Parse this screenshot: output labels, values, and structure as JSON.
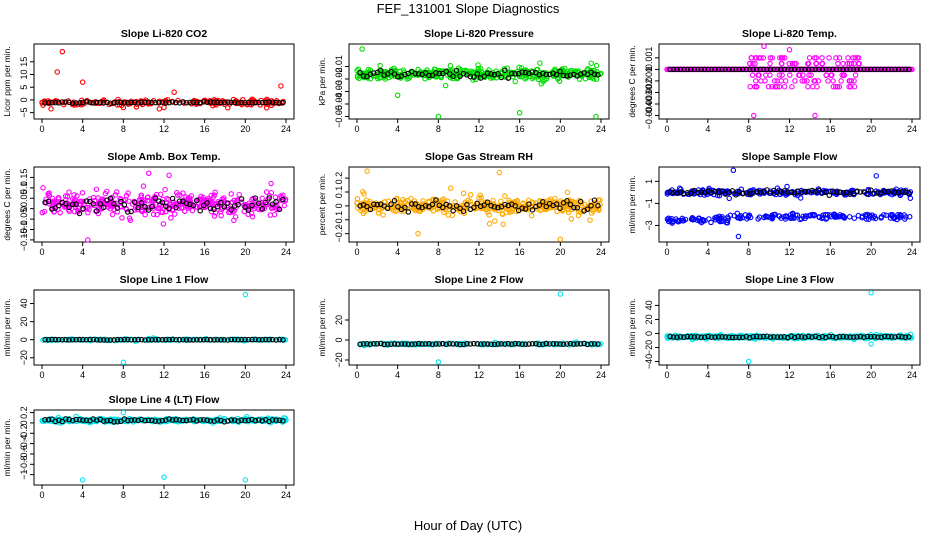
{
  "title": "FEF_131001  Slope Diagnostics",
  "xlabel": "Hour of Day (UTC)",
  "colors": {
    "obs": "#000000"
  },
  "chart_data": [
    {
      "type": "scatter",
      "title": "Slope Li-820 CO2",
      "ylabel": "Licor ppm per min.",
      "color": "#ff0000",
      "xlim": [
        0,
        24
      ],
      "ylim": [
        -7.5,
        22
      ],
      "yticks": [
        -5,
        0,
        5,
        10,
        15
      ],
      "xticks": [
        0,
        4,
        8,
        12,
        16,
        20,
        24
      ],
      "density": "sparse",
      "center": -1,
      "spread": 1.6,
      "obs_spread": 0.4,
      "outliers": [
        [
          2,
          19
        ],
        [
          1.5,
          11
        ],
        [
          4,
          7
        ],
        [
          8,
          -3
        ],
        [
          12,
          -3
        ],
        [
          13,
          3
        ],
        [
          23.5,
          5.5
        ]
      ]
    },
    {
      "type": "scatter",
      "title": "Slope Li-820 Pressure",
      "ylabel": "kPa per min.",
      "color": "#00dd00",
      "xlim": [
        0,
        24
      ],
      "ylim": [
        -0.052,
        0.008
      ],
      "yticks": [
        -0.05,
        -0.04,
        -0.03,
        -0.02,
        -0.01
      ],
      "xticks": [
        0,
        4,
        8,
        12,
        16,
        20,
        24
      ],
      "density": "dense",
      "center": -0.016,
      "spread": 0.006,
      "obs_spread": 0.004,
      "outliers": [
        [
          0.5,
          0.004
        ],
        [
          8,
          -0.05
        ],
        [
          16,
          -0.047
        ],
        [
          23.5,
          -0.05
        ],
        [
          4,
          -0.033
        ]
      ]
    },
    {
      "type": "scatter",
      "title": "Slope Li-820 Temp.",
      "ylabel": "degrees C per min.",
      "color": "#ff00ff",
      "xlim": [
        0,
        24
      ],
      "ylim": [
        -0.0043,
        0.0022
      ],
      "yticks": [
        -0.004,
        -0.003,
        -0.002,
        -0.001,
        0,
        0.001
      ],
      "xticks": [
        0,
        4,
        8,
        12,
        16,
        20,
        24
      ],
      "density": "band",
      "center": 0,
      "spread": 0,
      "obs_spread": 0,
      "outliers": [
        [
          9.5,
          0.002
        ],
        [
          12,
          0.0017
        ],
        [
          8.5,
          -0.004
        ],
        [
          14.5,
          -0.004
        ]
      ],
      "band_range": [
        8,
        19
      ],
      "band_values": [
        0.001,
        0.0005,
        -0.0005,
        -0.001,
        -0.0015
      ]
    },
    {
      "type": "scatter",
      "title": "Slope Amb. Box Temp.",
      "ylabel": "degrees C per min.",
      "color": "#ff00ff",
      "xlim": [
        0,
        24
      ],
      "ylim": [
        -0.16,
        0.2
      ],
      "yticks": [
        -0.15,
        -0.1,
        -0.05,
        0,
        0.05,
        0.1,
        0.15
      ],
      "xticks": [
        0,
        4,
        8,
        12,
        16,
        20,
        24
      ],
      "density": "dense",
      "center": 0.02,
      "spread": 0.07,
      "obs_spread": 0.05,
      "outliers": [
        [
          10.5,
          0.17
        ],
        [
          12.5,
          0.16
        ],
        [
          4.5,
          -0.15
        ]
      ]
    },
    {
      "type": "scatter",
      "title": "Slope Gas Stream RH",
      "ylabel": "percent per min.",
      "color": "#ffaa00",
      "xlim": [
        0,
        24
      ],
      "ylim": [
        -0.26,
        0.28
      ],
      "yticks": [
        -0.2,
        -0.1,
        0,
        0.1,
        0.2
      ],
      "xticks": [
        0,
        4,
        8,
        12,
        16,
        20,
        24
      ],
      "density": "dense",
      "center": 0,
      "spread": 0.08,
      "obs_spread": 0.06,
      "outliers": [
        [
          1,
          0.25
        ],
        [
          14,
          0.24
        ],
        [
          20,
          -0.24
        ],
        [
          6,
          -0.2
        ]
      ]
    },
    {
      "type": "scatter",
      "title": "Slope Sample Flow",
      "ylabel": "ml/min per min.",
      "color": "#0000ff",
      "xlim": [
        0,
        24
      ],
      "ylim": [
        -4.5,
        2.3
      ],
      "yticks": [
        -3,
        -1,
        1
      ],
      "xticks": [
        0,
        4,
        8,
        12,
        16,
        20,
        24
      ],
      "density": "two-band",
      "center": 0,
      "spread": 0.35,
      "obs_spread": 0.3,
      "outliers": [
        [
          6.5,
          2
        ],
        [
          7,
          -4
        ],
        [
          20.5,
          1.5
        ]
      ],
      "band2_center": -2.2
    },
    {
      "type": "scatter",
      "title": "Slope Line 1 Flow",
      "ylabel": "ml/min per min.",
      "color": "#00e5ee",
      "xlim": [
        0,
        24
      ],
      "ylim": [
        -28,
        55
      ],
      "yticks": [
        -20,
        0,
        20,
        40
      ],
      "xticks": [
        0,
        4,
        8,
        12,
        16,
        20,
        24
      ],
      "density": "sparse",
      "center": 0,
      "spread": 1.2,
      "obs_spread": 0.5,
      "outliers": [
        [
          20,
          50
        ],
        [
          8,
          -25
        ]
      ]
    },
    {
      "type": "scatter",
      "title": "Slope Line 2 Flow",
      "ylabel": "ml/min per min.",
      "color": "#00e5ee",
      "xlim": [
        0,
        24
      ],
      "ylim": [
        -25,
        50
      ],
      "yticks": [
        -20,
        0,
        20
      ],
      "xticks": [
        0,
        4,
        8,
        12,
        16,
        20,
        24
      ],
      "density": "sparse",
      "center": -4,
      "spread": 1.2,
      "obs_spread": 0.8,
      "outliers": [
        [
          20,
          46
        ],
        [
          8,
          -22
        ]
      ]
    },
    {
      "type": "scatter",
      "title": "Slope Line 3 Flow",
      "ylabel": "ml/min per min.",
      "color": "#00e5ee",
      "xlim": [
        0,
        24
      ],
      "ylim": [
        -45,
        62
      ],
      "yticks": [
        -40,
        -20,
        0,
        20,
        40
      ],
      "xticks": [
        0,
        4,
        8,
        12,
        16,
        20,
        24
      ],
      "density": "dense",
      "center": -5,
      "spread": 3,
      "obs_spread": 1.5,
      "outliers": [
        [
          20,
          58
        ],
        [
          8,
          -40
        ],
        [
          20,
          -15
        ]
      ]
    },
    {
      "type": "scatter",
      "title": "Slope Line 4 (LT) Flow",
      "ylabel": "ml/min per min.",
      "color": "#00e5ee",
      "xlim": [
        0,
        24
      ],
      "ylim": [
        -1.2,
        0.25
      ],
      "yticks": [
        -1,
        -0.8,
        -0.6,
        -0.4,
        -0.2,
        0,
        0.2
      ],
      "xticks": [
        0,
        4,
        8,
        12,
        16,
        20,
        24
      ],
      "density": "dense",
      "center": 0.05,
      "spread": 0.04,
      "obs_spread": 0.04,
      "outliers": [
        [
          4,
          -1.1
        ],
        [
          12,
          -1.05
        ],
        [
          20,
          -1.1
        ],
        [
          8,
          0.2
        ]
      ]
    }
  ]
}
